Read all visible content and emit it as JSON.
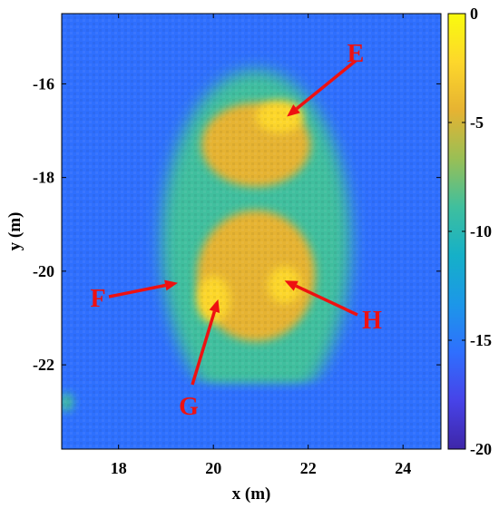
{
  "chart_data": {
    "type": "heatmap",
    "title": "",
    "xlabel": "x (m)",
    "ylabel": "y (m)",
    "xlim": [
      16.8,
      24.8
    ],
    "ylim": [
      -23.8,
      -14.5
    ],
    "xticks": [
      "18",
      "20",
      "22",
      "24"
    ],
    "yticks": [
      "-16",
      "-18",
      "-20",
      "-22"
    ],
    "colorbar": {
      "range": [
        -20,
        0
      ],
      "ticks": [
        "0",
        "-5",
        "-10",
        "-15",
        "-20"
      ],
      "colormap": "parula"
    },
    "background_level": -15,
    "features": [
      {
        "shape": "ellipse",
        "cx": 20.9,
        "cy": -19.4,
        "rx": 2.0,
        "ry": 3.7,
        "level": -9
      },
      {
        "shape": "ellipse",
        "cx": 20.9,
        "cy": -17.3,
        "rx": 1.15,
        "ry": 0.9,
        "level": -3.5
      },
      {
        "shape": "ellipse",
        "cx": 20.9,
        "cy": -20.1,
        "rx": 1.25,
        "ry": 1.4,
        "level": -3.5
      },
      {
        "shape": "ellipse",
        "cx": 21.4,
        "cy": -16.7,
        "rx": 0.5,
        "ry": 0.35,
        "level": -2
      },
      {
        "shape": "ellipse",
        "cx": 20.0,
        "cy": -20.6,
        "rx": 0.35,
        "ry": 0.5,
        "level": -2
      },
      {
        "shape": "ellipse",
        "cx": 21.5,
        "cy": -20.3,
        "rx": 0.35,
        "ry": 0.4,
        "level": -2
      },
      {
        "shape": "band",
        "y_from": -23.8,
        "y_to": -22.4,
        "level": -16
      },
      {
        "shape": "ellipse",
        "cx": 16.9,
        "cy": -22.8,
        "rx": 0.15,
        "ry": 0.2,
        "level": -8
      }
    ],
    "annotations": [
      {
        "label": "E",
        "tip_x": 21.55,
        "tip_y": -16.7
      },
      {
        "label": "F",
        "tip_x": 19.25,
        "tip_y": -20.25
      },
      {
        "label": "G",
        "tip_x": 20.1,
        "tip_y": -20.6
      },
      {
        "label": "H",
        "tip_x": 21.5,
        "tip_y": -20.2
      }
    ]
  },
  "colors": {
    "annotation": "#ee1111",
    "parula": [
      "#3e26a8",
      "#4743e8",
      "#2f6ffe",
      "#1c97e8",
      "#15b0c8",
      "#3fbf9e",
      "#99bf55",
      "#e6b332",
      "#fdd72b",
      "#f9fb0e"
    ]
  }
}
